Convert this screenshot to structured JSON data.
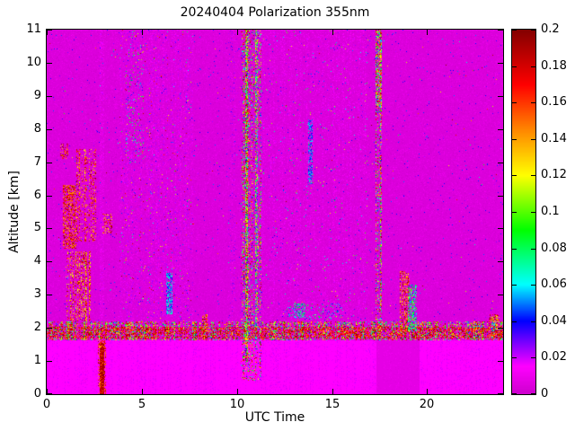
{
  "chart_data": {
    "type": "heatmap",
    "title": "20240404 Polarization 355nm",
    "xlabel": "UTC Time",
    "ylabel": "Altitude [km]",
    "x_range": [
      0,
      24
    ],
    "y_range": [
      0,
      11
    ],
    "value_range": [
      0,
      0.2
    ],
    "x_ticks": [
      0,
      5,
      10,
      15,
      20
    ],
    "y_ticks": [
      0,
      1,
      2,
      3,
      4,
      5,
      6,
      7,
      8,
      9,
      10,
      11
    ],
    "colorbar_ticks": [
      "0",
      "0.02",
      "0.04",
      "0.06",
      "0.08",
      "0.1",
      "0.12",
      "0.14",
      "0.16",
      "0.18",
      "0.2"
    ],
    "grid": false,
    "legend_position": "colorbar-right",
    "seed": 42,
    "background_value": 0.004,
    "colormap": [
      {
        "t": 0.0,
        "rgb": [
          206,
          0,
          206
        ]
      },
      {
        "t": 0.075,
        "rgb": [
          255,
          0,
          255
        ]
      },
      {
        "t": 0.2,
        "rgb": [
          0,
          0,
          255
        ]
      },
      {
        "t": 0.3,
        "rgb": [
          0,
          255,
          255
        ]
      },
      {
        "t": 0.45,
        "rgb": [
          0,
          255,
          0
        ]
      },
      {
        "t": 0.6,
        "rgb": [
          255,
          255,
          0
        ]
      },
      {
        "t": 0.72,
        "rgb": [
          255,
          140,
          0
        ]
      },
      {
        "t": 0.85,
        "rgb": [
          255,
          0,
          0
        ]
      },
      {
        "t": 1.0,
        "rgb": [
          132,
          0,
          0
        ]
      }
    ],
    "description": "Lidar depolarization-ratio quicklook: low (magenta) background everywhere; enhanced depolarizing layer near 2 km altitude across all hours; noisy vertical bands at 4-7.7, 10.2-11.3 and 17.3-17.6 UTC; dark-red aerosol patches at 0.7-3.4 UTC between 2 and 7.5 km; blue patch at 6.4 UTC 2.4-3.6 km; cyan dotted layer near 2.5 km at 12.4-15.6 UTC; dark-red plus cyan/green patch at 18.6-19.5 UTC below 3.7 km; smoother lighter-magenta band below 1.6 km with a dark red column at 2.9 UTC.",
    "features": [
      {
        "name": "upper-texture",
        "type": "speckle",
        "x": [
          0,
          24
        ],
        "y": [
          1.62,
          11
        ],
        "density": 0.35,
        "vmin": 0,
        "vmax": 0.01
      },
      {
        "name": "scatter-violet-dots",
        "type": "speckle",
        "x": [
          0,
          24
        ],
        "y": [
          2.1,
          11
        ],
        "density": 0.012,
        "vmin": 0.01,
        "vmax": 0.05
      },
      {
        "name": "rare-bright-dots",
        "type": "speckle",
        "x": [
          0,
          24
        ],
        "y": [
          2.1,
          11
        ],
        "density": 0.0015,
        "vmin": 0.05,
        "vmax": 0.2
      },
      {
        "name": "band-4-7",
        "type": "speckle",
        "x": [
          3.85,
          7.7
        ],
        "y": [
          2.0,
          11
        ],
        "density": 0.3,
        "vmin": 0,
        "vmax": 0.025,
        "columnar": true
      },
      {
        "name": "band-4-7-color",
        "type": "speckle",
        "x": [
          3.85,
          7.7
        ],
        "y": [
          2.0,
          11
        ],
        "density": 0.02,
        "vmin": 0.03,
        "vmax": 0.2,
        "columnar": true
      },
      {
        "name": "band-4-7-top-cyan",
        "type": "speckle",
        "x": [
          4.15,
          5.1
        ],
        "y": [
          7,
          11
        ],
        "density": 0.05,
        "vmin": 0.03,
        "vmax": 0.12
      },
      {
        "name": "col-2.9-light",
        "type": "speckle",
        "x": [
          2.8,
          3.0
        ],
        "y": [
          2.2,
          11
        ],
        "density": 0.3,
        "vmin": 0.005,
        "vmax": 0.02
      },
      {
        "name": "col-9.7-light",
        "type": "speckle",
        "x": [
          9.55,
          9.95
        ],
        "y": [
          2.2,
          11
        ],
        "density": 0.2,
        "vmin": 0,
        "vmax": 0.03,
        "columnar": true
      },
      {
        "name": "mid-band-texture",
        "type": "speckle",
        "x": [
          11.3,
          16.9
        ],
        "y": [
          2.1,
          11
        ],
        "density": 0.25,
        "vmin": 0,
        "vmax": 0.02,
        "columnar": true
      },
      {
        "name": "mid-band-dots",
        "type": "speckle",
        "x": [
          11.3,
          16.9
        ],
        "y": [
          2.1,
          11
        ],
        "density": 0.012,
        "vmin": 0.02,
        "vmax": 0.12,
        "columnar": true
      },
      {
        "name": "bottom-band",
        "type": "fill",
        "x": [
          0,
          24
        ],
        "y": [
          0,
          1.62
        ],
        "v": 0.015
      },
      {
        "name": "bottom-band-texture",
        "type": "speckle",
        "x": [
          0,
          24
        ],
        "y": [
          0,
          1.62
        ],
        "density": 0.3,
        "vmin": 0.009,
        "vmax": 0.02,
        "columnar": true
      },
      {
        "name": "bottom-dark-17-19",
        "type": "fill",
        "x": [
          17.35,
          19.6
        ],
        "y": [
          0,
          1.62
        ],
        "v": 0.007
      },
      {
        "name": "bottom-dark-17-19-tex",
        "type": "speckle",
        "x": [
          17.35,
          19.6
        ],
        "y": [
          0,
          1.62
        ],
        "density": 0.25,
        "vmin": 0.004,
        "vmax": 0.012,
        "columnar": true
      },
      {
        "name": "layer-2km",
        "type": "speckle",
        "x": [
          0,
          24
        ],
        "y": [
          1.62,
          2.2
        ],
        "density": 0.55,
        "vmin": 0.04,
        "vmax": 0.2,
        "columnar": true
      },
      {
        "name": "layer-2km-dark",
        "type": "speckle",
        "x": [
          0,
          24
        ],
        "y": [
          1.68,
          2.02
        ],
        "density": 0.4,
        "vmin": 0.15,
        "vmax": 0.2
      },
      {
        "name": "aerosol-left-1",
        "type": "speckle",
        "x": [
          0.85,
          1.55
        ],
        "y": [
          4.4,
          6.3
        ],
        "density": 0.5,
        "vmin": 0.13,
        "vmax": 0.2
      },
      {
        "name": "aerosol-left-2",
        "type": "speckle",
        "x": [
          1.55,
          2.6
        ],
        "y": [
          4.6,
          7.4
        ],
        "density": 0.3,
        "vmin": 0.12,
        "vmax": 0.2,
        "columnar": true
      },
      {
        "name": "aerosol-left-3",
        "type": "speckle",
        "x": [
          1.0,
          2.3
        ],
        "y": [
          2.2,
          4.3
        ],
        "density": 0.45,
        "vmin": 0.11,
        "vmax": 0.2,
        "columnar": true
      },
      {
        "name": "aerosol-left-4",
        "type": "speckle",
        "x": [
          0.7,
          1.15
        ],
        "y": [
          7.1,
          7.55
        ],
        "density": 0.35,
        "vmin": 0.13,
        "vmax": 0.2
      },
      {
        "name": "aerosol-left-5",
        "type": "speckle",
        "x": [
          2.95,
          3.45
        ],
        "y": [
          4.85,
          5.45
        ],
        "density": 0.3,
        "vmin": 0.12,
        "vmax": 0.2
      },
      {
        "name": "red-column-bottom",
        "type": "fill",
        "x": [
          2.78,
          3.02
        ],
        "y": [
          0,
          1.55
        ],
        "v": 0.19,
        "jitter": 0.02
      },
      {
        "name": "red-column-rough",
        "type": "speckle",
        "x": [
          2.7,
          3.1
        ],
        "y": [
          0,
          1.62
        ],
        "density": 0.4,
        "vmin": 0.14,
        "vmax": 0.2
      },
      {
        "name": "blob-8.3",
        "type": "speckle",
        "x": [
          8.15,
          8.45
        ],
        "y": [
          1.62,
          2.4
        ],
        "density": 0.5,
        "vmin": 0.12,
        "vmax": 0.2
      },
      {
        "name": "blue-streak-6.4",
        "type": "speckle",
        "x": [
          6.28,
          6.62
        ],
        "y": [
          2.4,
          3.65
        ],
        "density": 0.65,
        "vmin": 0.035,
        "vmax": 0.075
      },
      {
        "name": "column-10.5-noise",
        "type": "speckle",
        "x": [
          10.2,
          11.3
        ],
        "y": [
          0.4,
          11
        ],
        "density": 0.3,
        "vmin": 0,
        "vmax": 0.2,
        "columnar": true
      },
      {
        "name": "column-10.5-line",
        "type": "speckle",
        "x": [
          10.42,
          10.6
        ],
        "y": [
          1.0,
          11
        ],
        "density": 0.85,
        "vmin": 0.03,
        "vmax": 0.2
      },
      {
        "name": "column-11-line",
        "type": "speckle",
        "x": [
          10.95,
          11.12
        ],
        "y": [
          2.0,
          11
        ],
        "density": 0.5,
        "vmin": 0.02,
        "vmax": 0.15
      },
      {
        "name": "blue-streak-13.9",
        "type": "speckle",
        "x": [
          13.75,
          14.0
        ],
        "y": [
          6.3,
          8.3
        ],
        "density": 0.5,
        "vmin": 0.03,
        "vmax": 0.07
      },
      {
        "name": "cyan-line-2.5km",
        "type": "speckle",
        "x": [
          12.4,
          15.6
        ],
        "y": [
          2.25,
          2.75
        ],
        "density": 0.12,
        "vmin": 0.035,
        "vmax": 0.09
      },
      {
        "name": "cyan-clump-13.3",
        "type": "speckle",
        "x": [
          13.0,
          13.6
        ],
        "y": [
          2.3,
          2.75
        ],
        "density": 0.4,
        "vmin": 0.04,
        "vmax": 0.09
      },
      {
        "name": "column-17.4",
        "type": "speckle",
        "x": [
          17.3,
          17.62
        ],
        "y": [
          1.9,
          11
        ],
        "density": 0.45,
        "vmin": 0.02,
        "vmax": 0.2,
        "columnar": true
      },
      {
        "name": "column-17.4-top",
        "type": "speckle",
        "x": [
          17.3,
          17.62
        ],
        "y": [
          8.5,
          11
        ],
        "density": 0.5,
        "vmin": 0.04,
        "vmax": 0.2
      },
      {
        "name": "blob-19-dark",
        "type": "speckle",
        "x": [
          18.55,
          19.1
        ],
        "y": [
          1.9,
          3.7
        ],
        "density": 0.5,
        "vmin": 0.12,
        "vmax": 0.2,
        "columnar": true
      },
      {
        "name": "blob-19-cyan",
        "type": "speckle",
        "x": [
          19.0,
          19.45
        ],
        "y": [
          1.9,
          3.3
        ],
        "density": 0.5,
        "vmin": 0.04,
        "vmax": 0.11
      },
      {
        "name": "blob-21.3",
        "type": "speckle",
        "x": [
          21.2,
          21.5
        ],
        "y": [
          1.8,
          2.1
        ],
        "density": 0.3,
        "vmin": 0.1,
        "vmax": 0.18
      },
      {
        "name": "blob-23.5-dark",
        "type": "speckle",
        "x": [
          23.25,
          23.8
        ],
        "y": [
          1.7,
          2.4
        ],
        "density": 0.45,
        "vmin": 0.1,
        "vmax": 0.2
      },
      {
        "name": "blob-23.5-cyan",
        "type": "speckle",
        "x": [
          23.38,
          23.6
        ],
        "y": [
          1.9,
          2.2
        ],
        "density": 0.3,
        "vmin": 0.04,
        "vmax": 0.08
      }
    ]
  }
}
